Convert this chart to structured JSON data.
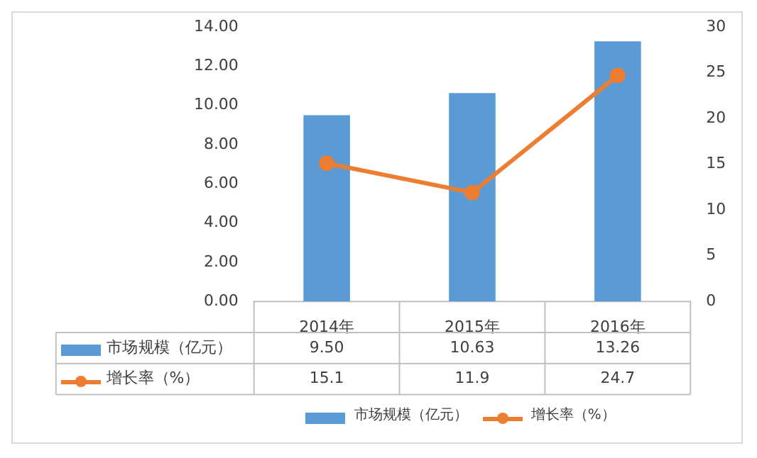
{
  "chart_data": {
    "type": "bar",
    "categories": [
      "2014年",
      "2015年",
      "2016年"
    ],
    "series": [
      {
        "name": "市场规模（亿元）",
        "color": "#5b9bd5",
        "values": [
          9.5,
          10.63,
          13.26
        ],
        "value_labels": [
          "9.50",
          "10.63",
          "13.26"
        ]
      },
      {
        "name": "增长率（%）",
        "type": "line",
        "axis": "y2",
        "color": "#ed7d31",
        "values": [
          15.1,
          11.9,
          24.7
        ],
        "value_labels": [
          "15.1",
          "11.9",
          "24.7"
        ]
      }
    ],
    "ylim": [
      0,
      14
    ],
    "yticks": [
      {
        "value": 0,
        "label": "0.00"
      },
      {
        "value": 2,
        "label": "2.00"
      },
      {
        "value": 4,
        "label": "4.00"
      },
      {
        "value": 6,
        "label": "6.00"
      },
      {
        "value": 8,
        "label": "8.00"
      },
      {
        "value": 10,
        "label": "10.00"
      },
      {
        "value": 12,
        "label": "12.00"
      },
      {
        "value": 14,
        "label": "14.00"
      }
    ],
    "y2lim": [
      0,
      30
    ],
    "y2ticks": [
      0,
      5,
      10,
      15,
      20,
      25,
      30
    ],
    "grid": false,
    "legend": "bottom",
    "marker": "circle",
    "line_style": "solid"
  }
}
